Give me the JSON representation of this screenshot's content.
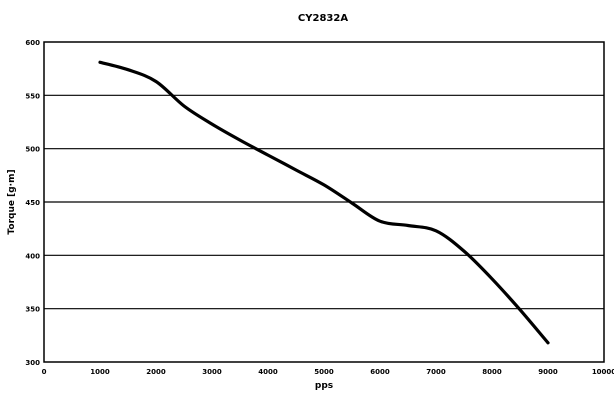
{
  "chart_data": {
    "type": "line",
    "title": "CY2832A",
    "xlabel": "pps",
    "ylabel": "Torque [g·m]",
    "xlim": [
      0,
      10000
    ],
    "ylim": [
      300,
      600
    ],
    "xticks": [
      0,
      1000,
      2000,
      3000,
      4000,
      5000,
      6000,
      7000,
      8000,
      9000,
      10000
    ],
    "yticks": [
      300,
      350,
      400,
      450,
      500,
      550,
      600
    ],
    "grid": "horizontal",
    "series": [
      {
        "x": [
          1000,
          1500,
          2000,
          2500,
          3000,
          3500,
          4000,
          4500,
          5000,
          5500,
          6000,
          6500,
          7000,
          7500,
          8000,
          8500,
          9000
        ],
        "y": [
          581,
          574,
          563,
          540,
          523,
          508,
          494,
          480,
          466,
          449,
          432,
          428,
          423,
          404,
          378,
          349,
          318
        ],
        "color": "#000000"
      }
    ]
  }
}
